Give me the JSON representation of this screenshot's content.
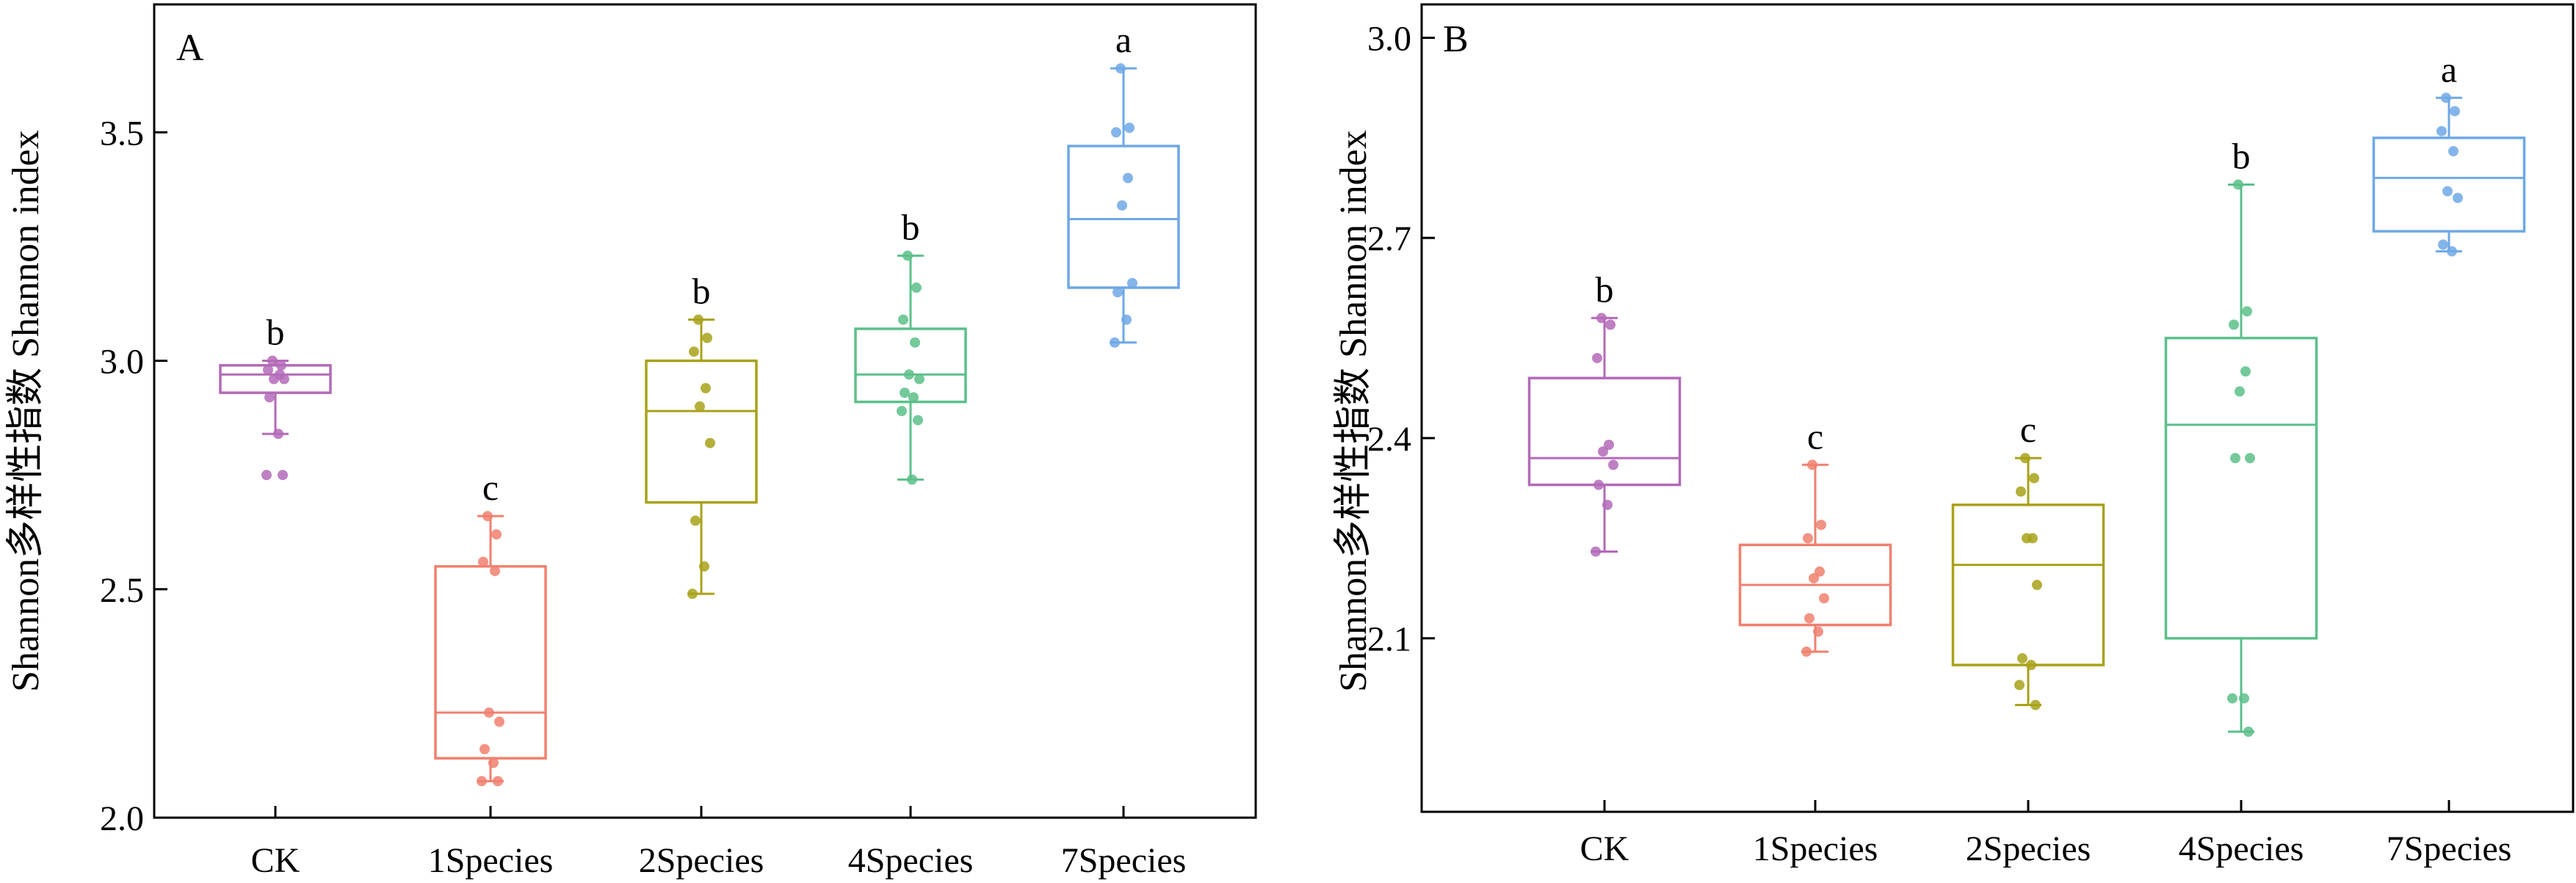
{
  "chart_data": [
    {
      "panel_label": "A",
      "type": "box",
      "ylabel": "Shannon多样性指数 Shannon index",
      "ylim": [
        2.0,
        3.78
      ],
      "yticks": [
        2.0,
        2.5,
        3.0,
        3.5
      ],
      "ytick_labels": [
        "2.0",
        "2.5",
        "3.0",
        "3.5"
      ],
      "categories": [
        "CK",
        "1Species",
        "2Species",
        "4Species",
        "7Species"
      ],
      "colors": [
        "#b36ab8",
        "#f0806e",
        "#a8a21a",
        "#5cc08a",
        "#6ea8e6"
      ],
      "boxes": [
        {
          "min": 2.84,
          "q1": 2.93,
          "median": 2.97,
          "q3": 2.99,
          "max": 3.0,
          "letter": "b",
          "points": [
            3.0,
            2.99,
            2.98,
            2.97,
            2.96,
            2.96,
            2.92,
            2.84,
            2.75,
            2.75
          ]
        },
        {
          "min": 2.08,
          "q1": 2.13,
          "median": 2.23,
          "q3": 2.55,
          "max": 2.66,
          "letter": "c",
          "points": [
            2.66,
            2.62,
            2.56,
            2.54,
            2.23,
            2.21,
            2.15,
            2.12,
            2.08,
            2.08
          ]
        },
        {
          "min": 2.49,
          "q1": 2.69,
          "median": 2.89,
          "q3": 3.0,
          "max": 3.09,
          "letter": "b",
          "points": [
            3.09,
            3.05,
            3.02,
            2.94,
            2.9,
            2.82,
            2.65,
            2.55,
            2.49
          ]
        },
        {
          "min": 2.74,
          "q1": 2.91,
          "median": 2.97,
          "q3": 3.07,
          "max": 3.23,
          "letter": "b",
          "points": [
            3.23,
            3.16,
            3.09,
            3.04,
            2.97,
            2.96,
            2.93,
            2.92,
            2.89,
            2.87,
            2.74
          ]
        },
        {
          "min": 3.04,
          "q1": 3.16,
          "median": 3.31,
          "q3": 3.47,
          "max": 3.64,
          "letter": "a",
          "points": [
            3.64,
            3.51,
            3.5,
            3.4,
            3.34,
            3.17,
            3.15,
            3.09,
            3.04
          ]
        }
      ]
    },
    {
      "panel_label": "B",
      "type": "box",
      "ylabel": "Shannon多样性指数 Shannon index",
      "ylim": [
        1.84,
        3.05
      ],
      "yticks": [
        2.1,
        2.4,
        2.7,
        3.0
      ],
      "ytick_labels": [
        "2.1",
        "2.4",
        "2.7",
        "3.0"
      ],
      "categories": [
        "CK",
        "1Species",
        "2Species",
        "4Species",
        "7Species"
      ],
      "colors": [
        "#b36ab8",
        "#f0806e",
        "#a8a21a",
        "#5cc08a",
        "#6ea8e6"
      ],
      "boxes": [
        {
          "min": 2.23,
          "q1": 2.33,
          "median": 2.37,
          "q3": 2.49,
          "max": 2.58,
          "letter": "b",
          "points": [
            2.58,
            2.57,
            2.52,
            2.39,
            2.38,
            2.36,
            2.33,
            2.3,
            2.23
          ]
        },
        {
          "min": 2.08,
          "q1": 2.12,
          "median": 2.18,
          "q3": 2.24,
          "max": 2.36,
          "letter": "c",
          "points": [
            2.36,
            2.27,
            2.25,
            2.2,
            2.19,
            2.16,
            2.13,
            2.11,
            2.08
          ]
        },
        {
          "min": 2.0,
          "q1": 2.06,
          "median": 2.21,
          "q3": 2.3,
          "max": 2.37,
          "letter": "c",
          "points": [
            2.37,
            2.34,
            2.32,
            2.25,
            2.25,
            2.18,
            2.07,
            2.06,
            2.03,
            2.0
          ]
        },
        {
          "min": 1.96,
          "q1": 2.1,
          "median": 2.42,
          "q3": 2.55,
          "max": 2.78,
          "letter": "b",
          "points": [
            2.78,
            2.59,
            2.57,
            2.5,
            2.47,
            2.37,
            2.37,
            2.01,
            2.01,
            1.96
          ]
        },
        {
          "min": 2.68,
          "q1": 2.71,
          "median": 2.79,
          "q3": 2.85,
          "max": 2.91,
          "letter": "a",
          "points": [
            2.91,
            2.89,
            2.86,
            2.83,
            2.77,
            2.76,
            2.69,
            2.68
          ]
        }
      ]
    }
  ]
}
